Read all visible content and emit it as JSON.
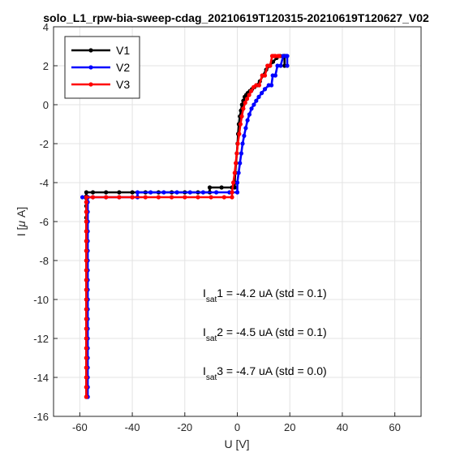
{
  "chart_data": {
    "type": "line",
    "title": "solo_L1_rpw-bia-sweep-cdag_20210619T120315-20210619T120627_V02",
    "xlabel": "U [V]",
    "ylabel_prefix": "I [",
    "ylabel_mu": "μ",
    "ylabel_suffix": " A]",
    "xlim": [
      -70,
      70
    ],
    "ylim": [
      -16,
      4
    ],
    "xticks": [
      "-60",
      "-40",
      "-20",
      "0",
      "20",
      "40",
      "60"
    ],
    "yticks": [
      "-16",
      "-14",
      "-12",
      "-10",
      "-8",
      "-6",
      "-4",
      "-2",
      "0",
      "2",
      "4"
    ],
    "grid": true,
    "legend_position": "top-left",
    "series": [
      {
        "name": "V1",
        "color": "#000000",
        "x": [
          -57.5,
          -57.5,
          -57.5,
          -57.5,
          -57.5,
          -57.5,
          -57.5,
          -57.5,
          -57.5,
          -57.5,
          -57.5,
          -57.5,
          -57.5,
          -57.5,
          -57.5,
          -57.5,
          -57.5,
          -57.5,
          -57.5,
          -57.5,
          -57.5,
          -57.5,
          -57.5,
          -57.5,
          -57.5,
          -57.5,
          -55,
          -50,
          -45,
          -40,
          -35,
          -30,
          -25,
          -20,
          -15,
          -10.5,
          -10.5,
          -6,
          -2,
          -1,
          -1,
          -0.8,
          -0.5,
          -0.2,
          0.1,
          0.3,
          0.6,
          1,
          1.4,
          1.8,
          2.3,
          2.8,
          3.4,
          4,
          4.8,
          5.6,
          6.5,
          7.5,
          8.6,
          9.8,
          11,
          12.3,
          13.6,
          15,
          16.3,
          17.5,
          18,
          18
        ],
        "y": [
          -15,
          -14.5,
          -14,
          -13.5,
          -13,
          -12.5,
          -12,
          -11.5,
          -11,
          -10.5,
          -10,
          -9.5,
          -9,
          -8.5,
          -8,
          -7.5,
          -7,
          -6.5,
          -6,
          -5.8,
          -5.5,
          -5.2,
          -5,
          -4.8,
          -4.7,
          -4.5,
          -4.5,
          -4.5,
          -4.5,
          -4.5,
          -4.5,
          -4.5,
          -4.5,
          -4.5,
          -4.5,
          -4.5,
          -4.25,
          -4.25,
          -4.25,
          -4.25,
          -4.0,
          -3.5,
          -3.0,
          -2.5,
          -2.0,
          -1.5,
          -1.0,
          -0.6,
          -0.3,
          0.0,
          0.2,
          0.4,
          0.5,
          0.6,
          0.7,
          0.8,
          0.9,
          1.0,
          1.2,
          1.5,
          1.8,
          2.0,
          2.2,
          2.4,
          2.5,
          2.5,
          2.5,
          2.0
        ]
      },
      {
        "name": "V2",
        "color": "#0000ff",
        "x": [
          -59,
          -57,
          -57,
          -57,
          -57,
          -57,
          -57,
          -57,
          -57,
          -57,
          -57,
          -57,
          -57,
          -57,
          -57,
          -57,
          -57,
          -57,
          -57,
          -57,
          -57,
          -57,
          -57,
          -57,
          -57,
          -57,
          -57,
          -57,
          -55,
          -50,
          -45,
          -40,
          -38,
          -38,
          -33,
          -28,
          -23,
          -18,
          -13,
          -8,
          -3,
          0,
          0,
          0.5,
          1,
          1.5,
          2,
          2.6,
          3.2,
          3.9,
          4.6,
          5.4,
          6.3,
          7.2,
          8.2,
          9.3,
          10.5,
          10.5,
          12,
          13,
          13.5,
          14.5,
          15.3,
          16.5,
          17.5,
          18.5,
          19,
          19
        ],
        "y": [
          -4.75,
          -4.75,
          -5,
          -5.5,
          -6,
          -6.5,
          -7,
          -7.5,
          -8,
          -8.5,
          -9,
          -9.5,
          -10,
          -10.5,
          -11,
          -11.5,
          -12,
          -12.5,
          -13,
          -13.5,
          -14,
          -14.5,
          -15,
          -15,
          -14.5,
          -10,
          -6,
          -4.75,
          -4.75,
          -4.75,
          -4.75,
          -4.75,
          -4.75,
          -4.5,
          -4.5,
          -4.5,
          -4.5,
          -4.5,
          -4.5,
          -4.5,
          -4.5,
          -4.5,
          -4.0,
          -3.5,
          -3.0,
          -2.5,
          -2.0,
          -1.6,
          -1.2,
          -0.8,
          -0.5,
          -0.2,
          0.0,
          0.2,
          0.4,
          0.6,
          0.8,
          0.8,
          1.0,
          1.0,
          1.5,
          1.5,
          2.0,
          2.0,
          2.5,
          2.5,
          2.5,
          2.0
        ]
      },
      {
        "name": "V3",
        "color": "#ff0000",
        "x": [
          -57.5,
          -57.5,
          -57.5,
          -57.5,
          -57.5,
          -57.5,
          -57.5,
          -57.5,
          -57.5,
          -57.5,
          -57.5,
          -57.5,
          -57.5,
          -57.5,
          -57.5,
          -57.5,
          -57.5,
          -57.5,
          -57.5,
          -57.5,
          -57.5,
          -57.5,
          -55,
          -50,
          -45,
          -40,
          -35,
          -30,
          -25,
          -20,
          -15,
          -10,
          -5,
          -2,
          -2,
          -1.5,
          -1,
          -0.6,
          -0.2,
          0.2,
          0.7,
          1.2,
          1.7,
          2.3,
          3,
          3.7,
          4.5,
          5.3,
          6.2,
          7.2,
          8.3,
          9.5,
          10.5,
          11.5,
          12.5,
          13.3,
          14,
          14.5,
          15.5,
          16
        ],
        "y": [
          -15,
          -14.5,
          -14,
          -13.5,
          -13,
          -12.5,
          -12,
          -11.5,
          -11,
          -10.5,
          -10,
          -9.5,
          -9,
          -8.5,
          -8,
          -7.5,
          -7,
          -6.5,
          -6,
          -5.5,
          -5,
          -4.75,
          -4.75,
          -4.75,
          -4.75,
          -4.75,
          -4.75,
          -4.75,
          -4.75,
          -4.75,
          -4.75,
          -4.75,
          -4.75,
          -4.75,
          -4.5,
          -4.0,
          -3.5,
          -3.0,
          -2.5,
          -2.0,
          -1.5,
          -1.0,
          -0.6,
          -0.2,
          0.1,
          0.3,
          0.5,
          0.7,
          0.9,
          1.0,
          1.0,
          1.5,
          1.5,
          2.0,
          2.0,
          2.5,
          2.5,
          2.5,
          2.5,
          2.5
        ]
      }
    ],
    "annotations": [
      {
        "main": "I",
        "sub": "sat",
        "rest": "1 = -4.2 uA (std = 0.1)"
      },
      {
        "main": "I",
        "sub": "sat",
        "rest": "2 = -4.5 uA (std = 0.1)"
      },
      {
        "main": "I",
        "sub": "sat",
        "rest": "3 = -4.7 uA (std = 0.0)"
      }
    ]
  }
}
